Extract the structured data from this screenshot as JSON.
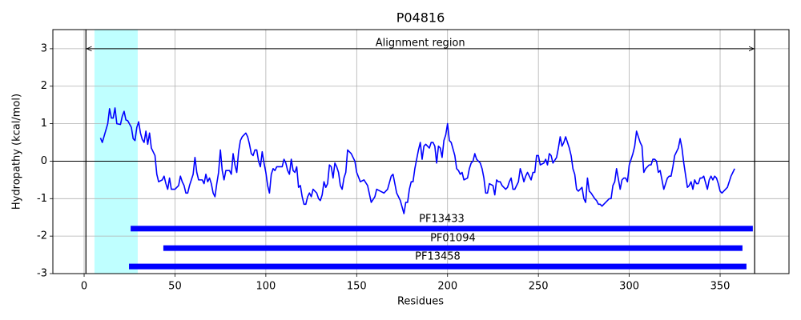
{
  "chart_data": {
    "type": "line",
    "title": "P04816",
    "xlabel": "Residues",
    "ylabel": "Hydropathy (kcal/mol)",
    "color": "#0000ff",
    "grid": true,
    "hline": 0,
    "xlim": [
      -17.2,
      387.9
    ],
    "ylim": [
      -3,
      3.51
    ],
    "xticks": [
      0,
      50,
      100,
      150,
      200,
      250,
      300,
      350
    ],
    "yticks": [
      -3,
      -2,
      -1,
      0,
      1,
      2,
      3
    ],
    "highlight": {
      "start": 5.7,
      "end": 29.5,
      "color": "#bfffff"
    },
    "alignment": {
      "label": "Alignment region",
      "start": 1,
      "end": 369,
      "y": 3
    },
    "domains": [
      {
        "name": "PF13433",
        "start": 25.6,
        "end": 368,
        "y": -1.8,
        "color": "#0000ff"
      },
      {
        "name": "PF01094",
        "start": 43.6,
        "end": 362.3,
        "y": -2.32,
        "color": "#0000ff"
      },
      {
        "name": "PF13458",
        "start": 24.7,
        "end": 364.5,
        "y": -2.81,
        "color": "#0000ff"
      }
    ],
    "x": [
      9,
      10,
      13,
      14,
      15,
      16,
      17,
      18,
      20,
      21,
      22,
      23,
      24,
      26,
      27,
      28,
      29,
      30,
      31,
      32,
      33,
      34,
      35,
      36,
      37,
      39,
      40,
      41,
      43,
      44,
      45,
      46,
      47,
      48,
      50,
      52,
      53,
      54,
      55,
      56,
      57,
      58,
      60,
      61,
      62,
      63,
      65,
      66,
      67,
      68,
      69,
      70,
      71,
      72,
      73,
      74,
      75,
      76,
      77,
      78,
      80,
      81,
      82,
      83,
      84,
      85,
      86,
      87,
      89,
      90,
      91,
      92,
      93,
      94,
      95,
      96,
      97,
      98,
      99,
      100,
      101,
      102,
      103,
      104,
      105,
      106,
      109,
      110,
      111,
      112,
      113,
      114,
      115,
      116,
      117,
      118,
      119,
      120,
      121,
      122,
      123,
      124,
      125,
      126,
      128,
      129,
      130,
      131,
      132,
      133,
      134,
      135,
      136,
      137,
      138,
      139,
      140,
      141,
      142,
      143,
      144,
      145,
      147,
      149,
      150,
      152,
      154,
      156,
      158,
      160,
      161,
      163,
      165,
      167,
      169,
      170,
      172,
      174,
      176,
      177,
      178,
      179,
      180,
      181,
      182,
      183,
      184,
      185,
      186,
      187,
      188,
      190,
      191,
      192,
      193,
      194,
      195,
      196,
      197,
      198,
      199,
      200,
      201,
      202,
      204,
      205,
      206,
      207,
      208,
      209,
      211,
      212,
      213,
      214,
      215,
      216,
      218,
      219,
      220,
      221,
      222,
      223,
      225,
      226,
      227,
      228,
      229,
      230,
      232,
      233,
      234,
      235,
      236,
      237,
      239,
      240,
      241,
      242,
      243,
      244,
      246,
      247,
      248,
      249,
      250,
      251,
      253,
      254,
      255,
      256,
      257,
      258,
      260,
      261,
      262,
      263,
      264,
      265,
      267,
      268,
      269,
      270,
      271,
      272,
      274,
      275,
      276,
      277,
      278,
      279,
      281,
      282,
      283,
      284,
      285,
      286,
      288,
      289,
      290,
      291,
      292,
      293,
      295,
      296,
      297,
      298,
      299,
      300,
      302,
      303,
      304,
      305,
      306,
      307,
      308,
      309,
      311,
      312,
      313,
      314,
      315,
      316,
      317,
      318,
      319,
      321,
      322,
      323,
      324,
      325,
      326,
      327,
      328,
      329,
      330,
      332,
      333,
      334,
      335,
      336,
      337,
      338,
      339,
      340,
      341,
      343,
      344,
      345,
      346,
      347,
      348,
      349,
      350,
      351,
      352,
      354,
      355,
      356,
      357,
      358
    ],
    "values": [
      0.62,
      0.5,
      1.0,
      1.4,
      1.15,
      1.15,
      1.42,
      1.0,
      0.98,
      1.2,
      1.33,
      1.1,
      1.08,
      0.9,
      0.6,
      0.55,
      0.9,
      1.05,
      0.75,
      0.58,
      0.5,
      0.8,
      0.45,
      0.75,
      0.35,
      0.15,
      -0.35,
      -0.55,
      -0.5,
      -0.4,
      -0.6,
      -0.75,
      -0.45,
      -0.75,
      -0.75,
      -0.65,
      -0.4,
      -0.55,
      -0.65,
      -0.85,
      -0.85,
      -0.65,
      -0.35,
      0.1,
      -0.3,
      -0.5,
      -0.5,
      -0.6,
      -0.35,
      -0.55,
      -0.45,
      -0.6,
      -0.85,
      -0.95,
      -0.6,
      -0.3,
      0.3,
      -0.25,
      -0.5,
      -0.25,
      -0.25,
      -0.35,
      0.2,
      -0.1,
      -0.3,
      0.25,
      0.55,
      0.65,
      0.75,
      0.65,
      0.45,
      0.2,
      0.15,
      0.3,
      0.3,
      0.0,
      -0.15,
      0.25,
      -0.05,
      -0.3,
      -0.65,
      -0.85,
      -0.35,
      -0.2,
      -0.25,
      -0.15,
      -0.15,
      0.05,
      -0.05,
      -0.25,
      -0.35,
      0.05,
      -0.25,
      -0.3,
      -0.15,
      -0.7,
      -0.65,
      -0.95,
      -1.15,
      -1.15,
      -0.95,
      -0.85,
      -0.95,
      -0.75,
      -0.85,
      -1.0,
      -1.05,
      -0.9,
      -0.55,
      -0.7,
      -0.6,
      -0.1,
      -0.15,
      -0.45,
      -0.05,
      -0.15,
      -0.3,
      -0.65,
      -0.75,
      -0.45,
      -0.3,
      0.3,
      0.2,
      0.0,
      -0.3,
      -0.55,
      -0.5,
      -0.65,
      -1.1,
      -0.95,
      -0.75,
      -0.8,
      -0.85,
      -0.75,
      -0.4,
      -0.35,
      -0.85,
      -1.05,
      -1.4,
      -1.1,
      -1.1,
      -0.75,
      -0.55,
      -0.55,
      -0.2,
      0.05,
      0.3,
      0.5,
      0.05,
      0.4,
      0.45,
      0.35,
      0.5,
      0.5,
      0.4,
      -0.05,
      0.4,
      0.35,
      0.1,
      0.55,
      0.7,
      1.0,
      0.55,
      0.5,
      0.15,
      -0.2,
      -0.25,
      -0.35,
      -0.3,
      -0.5,
      -0.45,
      -0.2,
      -0.05,
      0.0,
      0.2,
      0.05,
      -0.05,
      -0.2,
      -0.45,
      -0.85,
      -0.85,
      -0.6,
      -0.65,
      -0.9,
      -0.5,
      -0.55,
      -0.55,
      -0.65,
      -0.75,
      -0.7,
      -0.55,
      -0.45,
      -0.75,
      -0.75,
      -0.55,
      -0.2,
      -0.35,
      -0.55,
      -0.4,
      -0.3,
      -0.5,
      -0.3,
      -0.3,
      0.15,
      0.15,
      -0.1,
      -0.05,
      0.05,
      -0.1,
      0.2,
      0.15,
      -0.05,
      0.1,
      0.35,
      0.65,
      0.4,
      0.5,
      0.65,
      0.35,
      0.15,
      -0.2,
      -0.35,
      -0.75,
      -0.8,
      -0.7,
      -1.0,
      -1.1,
      -0.45,
      -0.8,
      -0.85,
      -1.0,
      -1.05,
      -1.15,
      -1.15,
      -1.2,
      -1.15,
      -1.05,
      -1.0,
      -1.0,
      -0.65,
      -0.55,
      -0.2,
      -0.75,
      -0.5,
      -0.45,
      -0.45,
      -0.55,
      -0.1,
      0.2,
      0.4,
      0.8,
      0.65,
      0.5,
      0.4,
      -0.3,
      -0.2,
      -0.1,
      -0.1,
      0.05,
      0.05,
      0.0,
      -0.3,
      -0.25,
      -0.5,
      -0.75,
      -0.45,
      -0.4,
      -0.4,
      -0.15,
      0.15,
      0.25,
      0.35,
      0.6,
      0.35,
      -0.05,
      -0.7,
      -0.65,
      -0.55,
      -0.75,
      -0.5,
      -0.6,
      -0.6,
      -0.45,
      -0.45,
      -0.4,
      -0.75,
      -0.5,
      -0.4,
      -0.5,
      -0.4,
      -0.45,
      -0.6,
      -0.8,
      -0.85,
      -0.8,
      -0.7,
      -0.55,
      -0.4,
      -0.3,
      -0.2
    ]
  }
}
